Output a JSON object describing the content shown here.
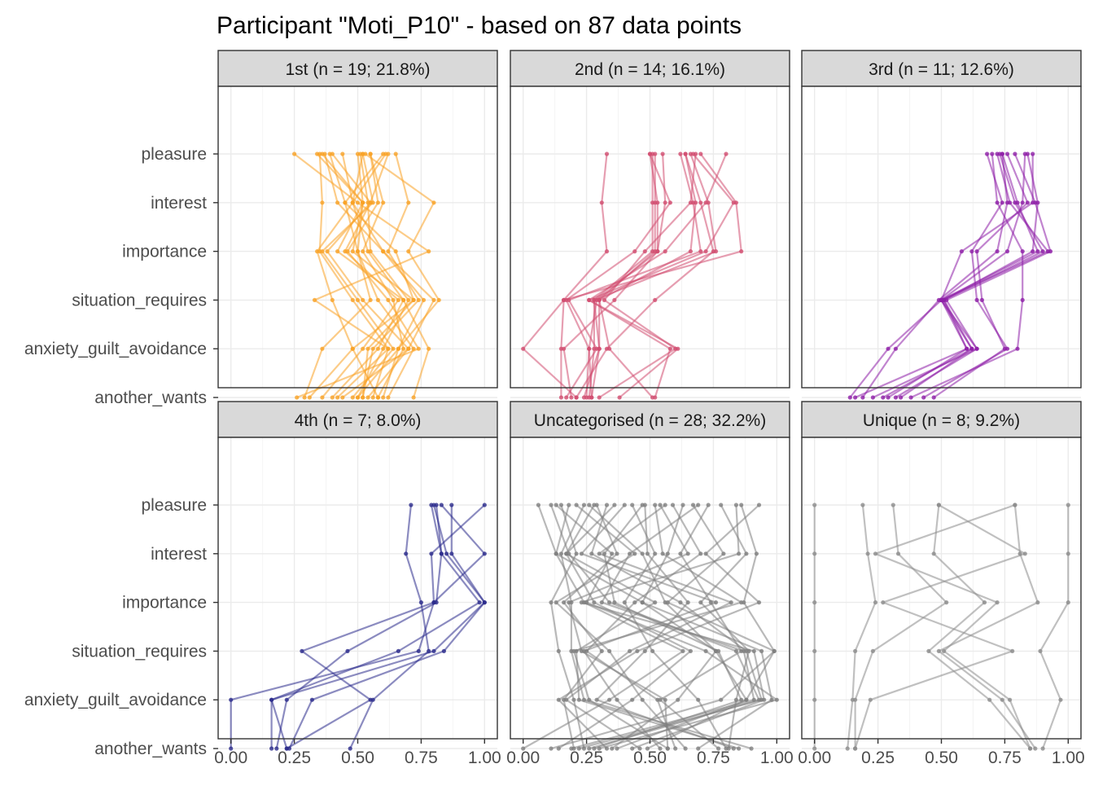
{
  "title": "Participant \"Moti_P10\" - based on 87 data points",
  "colors": {
    "strip_fill": "#d9d9d9",
    "grid_major": "#ebebeb",
    "grid_minor": "#f4f4f4",
    "axis_text": "#4d4d4d"
  },
  "chart_data": {
    "type": "line",
    "layout": "facet-grid-2x3",
    "y_categories": [
      "pleasure",
      "interest",
      "importance",
      "situation_requires",
      "anxiety_guilt_avoidance",
      "another_wants"
    ],
    "x_ticks": [
      "0.00",
      "0.25",
      "0.50",
      "0.75",
      "1.00"
    ],
    "xlim": [
      0,
      1
    ],
    "grid": true,
    "panels": [
      {
        "label": "1st (n = 19; 21.8%)",
        "color": "#f9a227",
        "series": [
          {
            "values": [
              0.36,
              0.52,
              0.42,
              0.68,
              0.58,
              0.4
            ]
          },
          {
            "values": [
              0.52,
              0.48,
              0.6,
              0.76,
              0.66,
              0.5
            ]
          },
          {
            "values": [
              0.35,
              0.36,
              0.35,
              0.48,
              0.62,
              0.56
            ]
          },
          {
            "values": [
              0.62,
              0.55,
              0.38,
              0.52,
              0.7,
              0.44
            ]
          },
          {
            "values": [
              0.5,
              0.52,
              0.48,
              0.72,
              0.54,
              0.52
            ]
          },
          {
            "values": [
              0.55,
              0.6,
              0.52,
              0.64,
              0.68,
              0.58
            ]
          },
          {
            "values": [
              0.4,
              0.55,
              0.45,
              0.66,
              0.52,
              0.36
            ]
          },
          {
            "values": [
              0.6,
              0.45,
              0.5,
              0.58,
              0.72,
              0.62
            ]
          },
          {
            "values": [
              0.37,
              0.42,
              0.6,
              0.8,
              0.7,
              0.54
            ]
          },
          {
            "values": [
              0.51,
              0.54,
              0.55,
              0.7,
              0.6,
              0.5
            ]
          },
          {
            "values": [
              0.44,
              0.48,
              0.34,
              0.4,
              0.48,
              0.31
            ]
          },
          {
            "values": [
              0.65,
              0.7,
              0.62,
              0.74,
              0.56,
              0.52
            ]
          },
          {
            "values": [
              0.25,
              0.5,
              0.78,
              0.33,
              0.62,
              0.42
            ]
          },
          {
            "values": [
              0.53,
              0.8,
              0.7,
              0.82,
              0.66,
              0.6
            ]
          },
          {
            "values": [
              0.34,
              0.52,
              0.5,
              0.55,
              0.36,
              0.29
            ]
          },
          {
            "values": [
              0.55,
              0.58,
              0.46,
              0.62,
              0.74,
              0.26
            ]
          },
          {
            "values": [
              0.61,
              0.48,
              0.54,
              0.68,
              0.78,
              0.72
            ]
          },
          {
            "values": [
              0.39,
              0.45,
              0.65,
              0.72,
              0.48,
              0.58
            ]
          },
          {
            "values": [
              0.52,
              0.56,
              0.36,
              0.5,
              0.64,
              0.48
            ]
          }
        ]
      },
      {
        "label": "2nd (n = 14; 16.1%)",
        "color": "#d24e71",
        "series": [
          {
            "values": [
              0.51,
              0.51,
              0.51,
              0.28,
              0.28,
              0.26
            ]
          },
          {
            "values": [
              0.52,
              0.52,
              0.52,
              0.3,
              0.3,
              0.27
            ]
          },
          {
            "values": [
              0.5,
              0.53,
              0.53,
              0.29,
              0.26,
              0.25
            ]
          },
          {
            "values": [
              0.64,
              0.7,
              0.75,
              0.52,
              0.33,
              0.21
            ]
          },
          {
            "values": [
              0.66,
              0.73,
              0.76,
              0.28,
              0.3,
              0.24
            ]
          },
          {
            "values": [
              0.7,
              0.84,
              0.86,
              0.16,
              0.15,
              0.15
            ]
          },
          {
            "values": [
              0.62,
              0.67,
              0.7,
              0.18,
              0.29,
              0.17
            ]
          },
          {
            "values": [
              0.8,
              0.72,
              0.56,
              0.26,
              0.58,
              0.52
            ]
          },
          {
            "values": [
              0.68,
              0.66,
              0.48,
              0.32,
              0.6,
              0.3
            ]
          },
          {
            "values": [
              0.33,
              0.31,
              0.33,
              0.16,
              0.0,
              0.21
            ]
          },
          {
            "values": [
              0.67,
              0.83,
              0.72,
              0.26,
              0.61,
              0.38
            ]
          },
          {
            "values": [
              0.55,
              0.56,
              0.53,
              0.36,
              0.16,
              0.19
            ]
          },
          {
            "values": [
              0.64,
              0.68,
              0.66,
              0.3,
              0.34,
              0.51
            ]
          },
          {
            "values": [
              0.5,
              0.58,
              0.44,
              0.17,
              0.26,
              0.27
            ]
          }
        ]
      },
      {
        "label": "3rd (n = 11; 12.6%)",
        "color": "#8e1fa7",
        "series": [
          {
            "values": [
              0.72,
              0.77,
              0.92,
              0.5,
              0.6,
              0.29
            ]
          },
          {
            "values": [
              0.74,
              0.8,
              0.88,
              0.5,
              0.62,
              0.34
            ]
          },
          {
            "values": [
              0.73,
              0.79,
              0.9,
              0.51,
              0.62,
              0.27
            ]
          },
          {
            "values": [
              0.79,
              0.87,
              0.93,
              0.52,
              0.64,
              0.23
            ]
          },
          {
            "values": [
              0.84,
              0.88,
              0.86,
              0.51,
              0.6,
              0.16
            ]
          },
          {
            "values": [
              0.83,
              0.82,
              0.76,
              0.5,
              0.29,
              0.14
            ]
          },
          {
            "values": [
              0.74,
              0.76,
              0.72,
              0.49,
              0.32,
              0.19
            ]
          },
          {
            "values": [
              0.86,
              0.86,
              0.58,
              0.5,
              0.64,
              0.32
            ]
          },
          {
            "values": [
              0.68,
              0.74,
              0.62,
              0.64,
              0.76,
              0.43
            ]
          },
          {
            "values": [
              0.7,
              0.72,
              0.82,
              0.82,
              0.8,
              0.38
            ]
          },
          {
            "values": [
              0.76,
              0.84,
              0.64,
              0.66,
              0.75,
              0.47
            ]
          }
        ]
      },
      {
        "label": "4th (n = 7; 8.0%)",
        "color": "#2c2c8c",
        "series": [
          {
            "values": [
              0.8,
              0.85,
              1.0,
              0.8,
              0.16,
              0.16
            ]
          },
          {
            "values": [
              0.81,
              0.83,
              0.98,
              0.66,
              0.16,
              0.22
            ]
          },
          {
            "values": [
              0.87,
              0.87,
              1.0,
              0.84,
              0.32,
              0.23
            ]
          },
          {
            "values": [
              0.79,
              0.83,
              0.81,
              0.46,
              0.22,
              0.18
            ]
          },
          {
            "values": [
              0.71,
              0.69,
              0.75,
              0.78,
              0.56,
              0.47
            ]
          },
          {
            "values": [
              0.83,
              1.0,
              0.8,
              0.28,
              0.55,
              0.22
            ]
          },
          {
            "values": [
              1.0,
              0.79,
              0.8,
              0.74,
              0.0,
              0.0
            ]
          }
        ]
      },
      {
        "label": "Uncategorised (n = 28; 32.2%)",
        "color": "#7f7f7f",
        "series": [
          {
            "values": [
              0.28,
              0.17,
              0.52,
              0.21,
              0.22,
              0.85
            ]
          },
          {
            "values": [
              0.47,
              0.32,
              0.36,
              0.77,
              0.86,
              0.28
            ]
          },
          {
            "values": [
              0.69,
              0.42,
              0.31,
              0.87,
              0.91,
              0.19
            ]
          },
          {
            "values": [
              0.84,
              0.85,
              0.23,
              0.91,
              0.95,
              0.43
            ]
          },
          {
            "values": [
              0.52,
              0.55,
              0.86,
              0.2,
              0.26,
              0.57
            ]
          },
          {
            "values": [
              0.18,
              0.13,
              0.47,
              0.76,
              0.61,
              0.35
            ]
          },
          {
            "values": [
              0.33,
              0.27,
              0.62,
              0.88,
              0.94,
              0.22
            ]
          },
          {
            "values": [
              0.59,
              0.7,
              0.44,
              0.25,
              0.53,
              0.6
            ]
          },
          {
            "values": [
              0.24,
              0.15,
              0.19,
              0.19,
              0.24,
              0.9
            ]
          },
          {
            "values": [
              0.73,
              0.62,
              0.74,
              0.86,
              0.54,
              0.77
            ]
          },
          {
            "values": [
              0.13,
              0.35,
              0.25,
              0.72,
              1.0,
              0.3
            ]
          },
          {
            "values": [
              0.48,
              0.49,
              0.65,
              0.48,
              0.29,
              0.83
            ]
          },
          {
            "values": [
              0.4,
              0.23,
              0.76,
              0.24,
              0.37,
              0.54
            ]
          },
          {
            "values": [
              0.67,
              0.79,
              0.57,
              0.99,
              0.78,
              0.11
            ]
          },
          {
            "values": [
              0.29,
              0.37,
              0.16,
              0.31,
              0.16,
              0.2
            ]
          },
          {
            "values": [
              0.86,
              0.92,
              0.87,
              0.99,
              0.88,
              0.49
            ]
          },
          {
            "values": [
              0.11,
              0.18,
              0.34,
              0.84,
              0.93,
              0.26
            ]
          },
          {
            "values": [
              0.56,
              0.3,
              0.82,
              0.42,
              0.17,
              0.46
            ]
          },
          {
            "values": [
              0.21,
              0.44,
              0.13,
              0.34,
              0.47,
              0.64
            ]
          },
          {
            "values": [
              0.78,
              0.88,
              0.7,
              0.89,
              0.84,
              0.81
            ]
          },
          {
            "values": [
              0.36,
              0.17,
              0.28,
              0.66,
              0.43,
              0.14
            ]
          },
          {
            "values": [
              0.26,
              0.47,
              0.56,
              0.76,
              0.88,
              0.37
            ]
          },
          {
            "values": [
              0.63,
              0.57,
              0.47,
              0.94,
              0.98,
              0.69
            ]
          },
          {
            "values": [
              0.15,
              0.21,
              0.11,
              0.14,
              0.2,
              0.24
            ]
          },
          {
            "values": [
              0.43,
              0.52,
              0.4,
              0.51,
              0.69,
              0.8
            ]
          },
          {
            "values": [
              0.93,
              0.72,
              0.93,
              0.45,
              0.14,
              0.33
            ]
          },
          {
            "values": [
              0.06,
              0.13,
              0.24,
              0.63,
              0.34,
              0.0
            ]
          },
          {
            "values": [
              0.54,
              0.65,
              0.18,
              0.23,
              0.56,
              0.57
            ]
          }
        ]
      },
      {
        "label": "Unique (n = 8; 9.2%)",
        "color": "#8c8c8c",
        "series": [
          {
            "values": [
              0.0,
              0.0,
              0.0,
              0.0,
              0.0,
              0.0
            ]
          },
          {
            "values": [
              0.19,
              0.21,
              0.24,
              0.16,
              0.15,
              0.13
            ]
          },
          {
            "values": [
              0.31,
              0.33,
              0.52,
              0.23,
              0.16,
              0.16
            ]
          },
          {
            "values": [
              0.49,
              0.47,
              0.67,
              0.45,
              0.69,
              0.85
            ]
          },
          {
            "values": [
              0.79,
              0.81,
              0.88,
              0.49,
              0.74,
              0.87
            ]
          },
          {
            "values": [
              1.0,
              1.0,
              1.0,
              0.89,
              0.97,
              0.9
            ]
          },
          {
            "values": [
              0.79,
              0.24,
              0.72,
              0.51,
              0.77,
              0.85
            ]
          },
          {
            "values": [
              0.49,
              0.83,
              0.27,
              0.78,
              0.22,
              0.16
            ]
          }
        ]
      }
    ]
  }
}
